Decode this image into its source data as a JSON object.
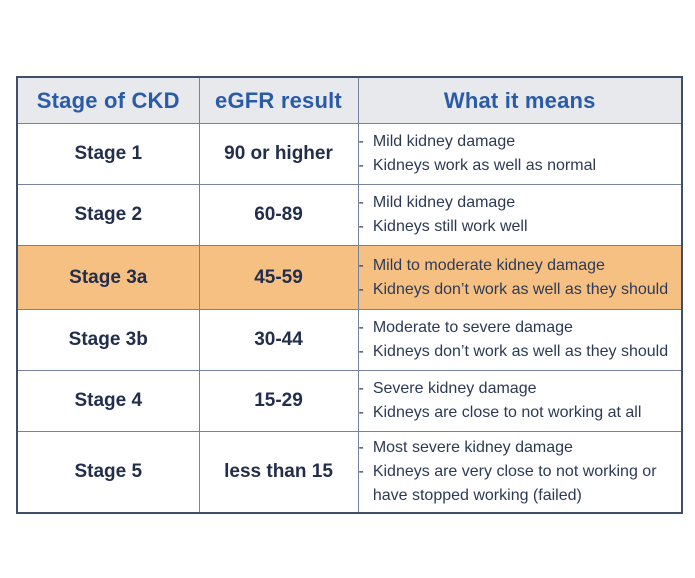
{
  "chart_data": {
    "type": "table",
    "title": "",
    "columns": [
      "Stage of CKD",
      "eGFR result",
      "What it means"
    ],
    "bullet": "-",
    "rows": [
      {
        "stage": "Stage 1",
        "egfr": "90 or higher",
        "meaning": [
          "Mild kidney damage",
          "Kidneys work as well as normal"
        ],
        "highlighted": false
      },
      {
        "stage": "Stage 2",
        "egfr": "60-89",
        "meaning": [
          "Mild kidney damage",
          "Kidneys still work well"
        ],
        "highlighted": false
      },
      {
        "stage": "Stage 3a",
        "egfr": "45-59",
        "meaning": [
          "Mild to moderate kidney damage",
          "Kidneys don’t work as well as they should"
        ],
        "highlighted": true
      },
      {
        "stage": "Stage 3b",
        "egfr": "30-44",
        "meaning": [
          "Moderate to severe damage",
          "Kidneys don’t work as well as they should"
        ],
        "highlighted": false
      },
      {
        "stage": "Stage 4",
        "egfr": "15-29",
        "meaning": [
          "Severe kidney damage",
          "Kidneys are close to not working at all"
        ],
        "highlighted": false
      },
      {
        "stage": "Stage 5",
        "egfr": "less than 15",
        "meaning": [
          "Most severe kidney damage",
          "Kidneys are very close to not working or have stopped working (failed)"
        ],
        "highlighted": false
      }
    ],
    "layout": {
      "highlight_color": "#f7c083",
      "header_bg": "#e8e9ec",
      "header_text_color": "#2a5ba9",
      "body_text_color": "#222e4c",
      "outer_border_color": "#3f4e6b",
      "inner_border_color": "#77839a"
    }
  }
}
